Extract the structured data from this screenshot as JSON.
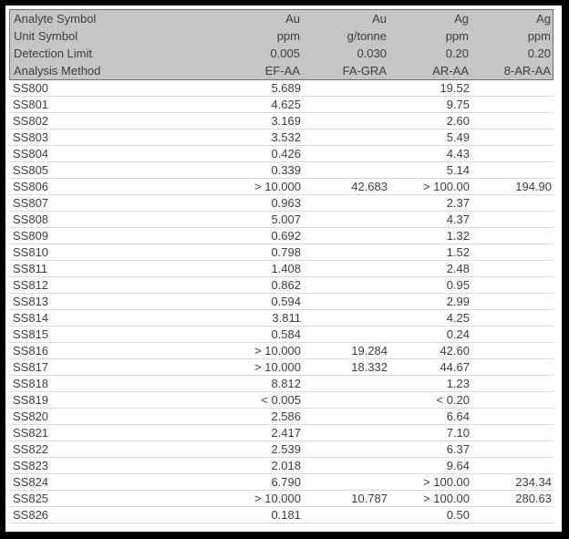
{
  "page": {
    "frame_color": "#000000",
    "background": "#ffffff",
    "header_fill": "#c5c5c5",
    "header_border": "#6f6f6f",
    "text_color": "#3e3e3e",
    "row_divider": "#dadada"
  },
  "table": {
    "header_rows": [
      {
        "label": "Analyte Symbol",
        "values": [
          "Au",
          "Au",
          "Ag",
          "Ag"
        ]
      },
      {
        "label": "Unit Symbol",
        "values": [
          "ppm",
          "g/tonne",
          "ppm",
          "ppm"
        ]
      },
      {
        "label": "Detection Limit",
        "values": [
          "0.005",
          "0.030",
          "0.20",
          "0.20"
        ]
      },
      {
        "label": "Analysis Method",
        "values": [
          "EF-AA",
          "FA-GRA",
          "AR-AA",
          "8-AR-AA"
        ]
      }
    ],
    "rows": [
      {
        "id": "SS800",
        "values": [
          "5.689",
          "",
          "19.52",
          ""
        ]
      },
      {
        "id": "SS801",
        "values": [
          "4.625",
          "",
          "9.75",
          ""
        ]
      },
      {
        "id": "SS802",
        "values": [
          "3.169",
          "",
          "2.60",
          ""
        ]
      },
      {
        "id": "SS803",
        "values": [
          "3.532",
          "",
          "5.49",
          ""
        ]
      },
      {
        "id": "SS804",
        "values": [
          "0.426",
          "",
          "4.43",
          ""
        ]
      },
      {
        "id": "SS805",
        "values": [
          "0.339",
          "",
          "5.14",
          ""
        ]
      },
      {
        "id": "SS806",
        "values": [
          "> 10.000",
          "42.683",
          "> 100.00",
          "194.90"
        ]
      },
      {
        "id": "SS807",
        "values": [
          "0.963",
          "",
          "2.37",
          ""
        ]
      },
      {
        "id": "SS808",
        "values": [
          "5.007",
          "",
          "4.37",
          ""
        ]
      },
      {
        "id": "SS809",
        "values": [
          "0.692",
          "",
          "1.32",
          ""
        ]
      },
      {
        "id": "SS810",
        "values": [
          "0.798",
          "",
          "1.52",
          ""
        ]
      },
      {
        "id": "SS811",
        "values": [
          "1.408",
          "",
          "2.48",
          ""
        ]
      },
      {
        "id": "SS812",
        "values": [
          "0.862",
          "",
          "0.95",
          ""
        ]
      },
      {
        "id": "SS813",
        "values": [
          "0.594",
          "",
          "2.99",
          ""
        ]
      },
      {
        "id": "SS814",
        "values": [
          "3.811",
          "",
          "4.25",
          ""
        ]
      },
      {
        "id": "SS815",
        "values": [
          "0.584",
          "",
          "0.24",
          ""
        ]
      },
      {
        "id": "SS816",
        "values": [
          "> 10.000",
          "19.284",
          "42.60",
          ""
        ]
      },
      {
        "id": "SS817",
        "values": [
          "> 10.000",
          "18.332",
          "44.67",
          ""
        ]
      },
      {
        "id": "SS818",
        "values": [
          "8.812",
          "",
          "1.23",
          ""
        ]
      },
      {
        "id": "SS819",
        "values": [
          "< 0.005",
          "",
          "< 0.20",
          ""
        ]
      },
      {
        "id": "SS820",
        "values": [
          "2.586",
          "",
          "6.64",
          ""
        ]
      },
      {
        "id": "SS821",
        "values": [
          "2.417",
          "",
          "7.10",
          ""
        ]
      },
      {
        "id": "SS822",
        "values": [
          "2.539",
          "",
          "6.37",
          ""
        ]
      },
      {
        "id": "SS823",
        "values": [
          "2.018",
          "",
          "9.64",
          ""
        ]
      },
      {
        "id": "SS824",
        "values": [
          "6.790",
          "",
          "> 100.00",
          "234.34"
        ]
      },
      {
        "id": "SS825",
        "values": [
          "> 10.000",
          "10.787",
          "> 100.00",
          "280.63"
        ]
      },
      {
        "id": "SS826",
        "values": [
          "0.181",
          "",
          "0.50",
          ""
        ]
      }
    ]
  }
}
